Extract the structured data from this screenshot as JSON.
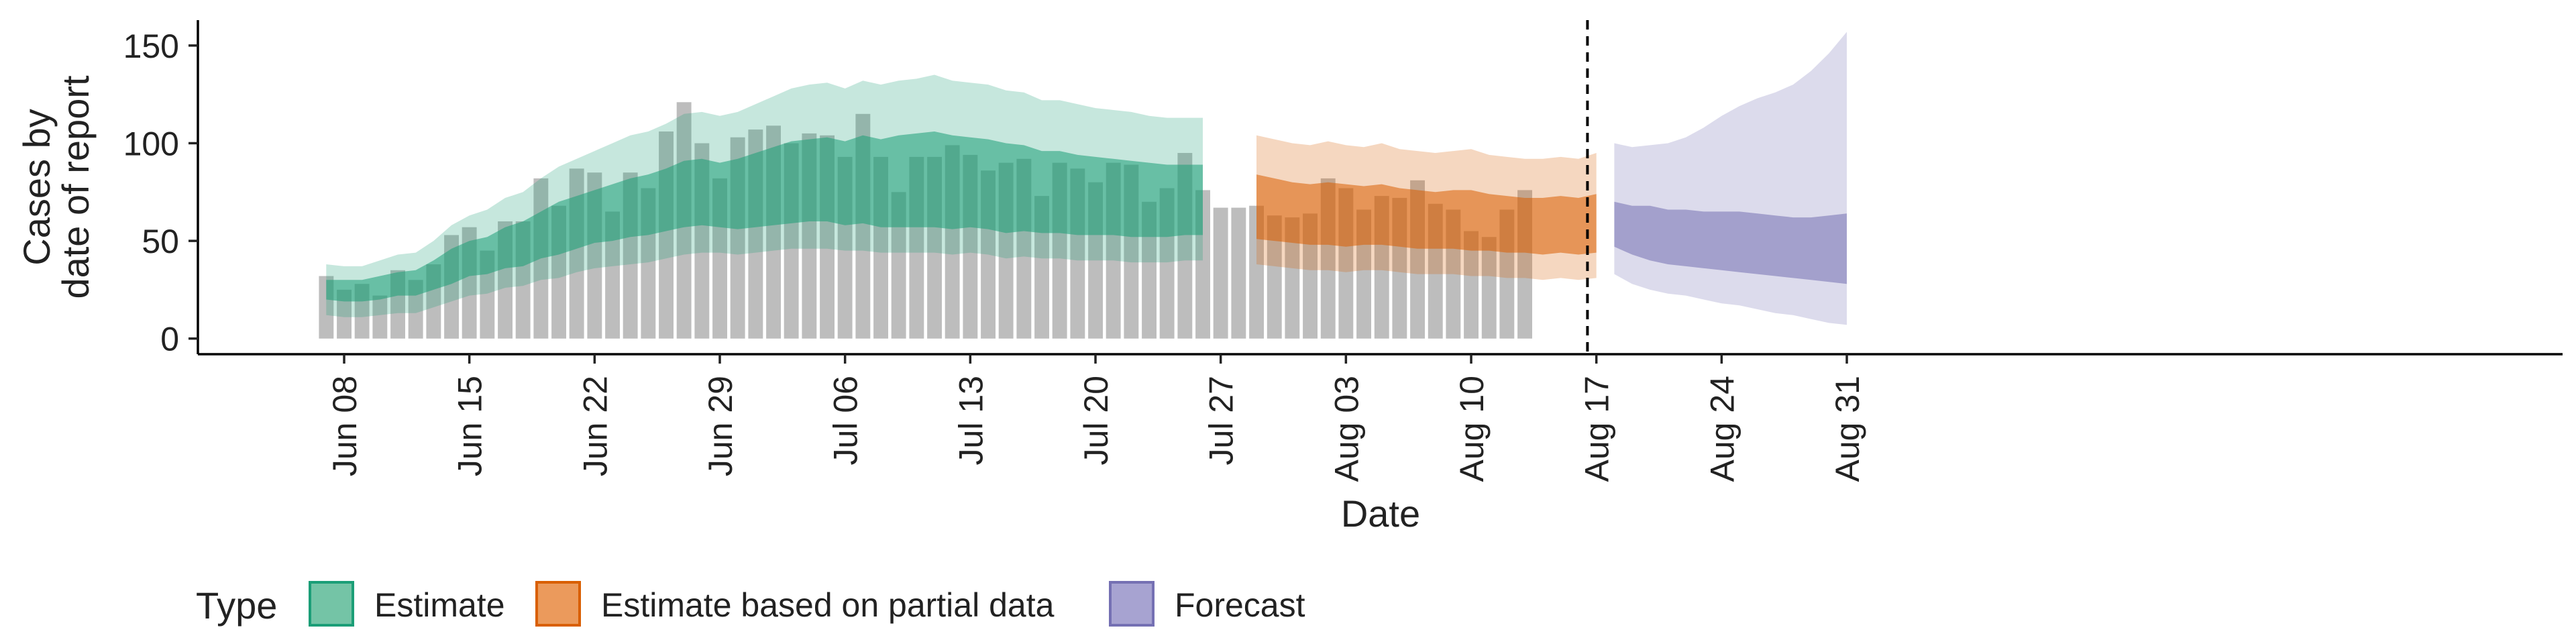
{
  "chart_data": {
    "type": "area",
    "title": "",
    "xlabel": "Date",
    "ylabel_lines": [
      "Cases by",
      "date of report"
    ],
    "x_start": "Jun 07",
    "x_range": [
      "Jun 03",
      "Sep 01"
    ],
    "ylim": [
      -8,
      163
    ],
    "yticks": [
      0,
      50,
      100,
      150
    ],
    "xticks": [
      {
        "label": "Jun 08",
        "date": "2020-06-08"
      },
      {
        "label": "Jun 15",
        "date": "2020-06-15"
      },
      {
        "label": "Jun 22",
        "date": "2020-06-22"
      },
      {
        "label": "Jun 29",
        "date": "2020-06-29"
      },
      {
        "label": "Jul 06",
        "date": "2020-07-06"
      },
      {
        "label": "Jul 13",
        "date": "2020-07-13"
      },
      {
        "label": "Jul 20",
        "date": "2020-07-20"
      },
      {
        "label": "Jul 27",
        "date": "2020-07-27"
      },
      {
        "label": "Aug 03",
        "date": "2020-08-03"
      },
      {
        "label": "Aug 10",
        "date": "2020-08-10"
      },
      {
        "label": "Aug 17",
        "date": "2020-08-17"
      },
      {
        "label": "Aug 24",
        "date": "2020-08-24"
      },
      {
        "label": "Aug 31",
        "date": "2020-08-31"
      }
    ],
    "vline_date": "2020-08-16",
    "grid": false,
    "legend_position": "bottom-left",
    "legend_title": "Type",
    "legend": [
      {
        "label": "Estimate",
        "fill": "#74c4a6",
        "stroke": "#1b9e77"
      },
      {
        "label": "Estimate based on partial data",
        "fill": "#eb9a5c",
        "stroke": "#d95f02"
      },
      {
        "label": "Forecast",
        "fill": "#a7a3d1",
        "stroke": "#7570b3"
      }
    ],
    "bar_color": "#bdbdbd",
    "reported_cases": [
      32,
      25,
      28,
      22,
      35,
      30,
      38,
      53,
      57,
      45,
      60,
      60,
      82,
      68,
      87,
      85,
      65,
      85,
      77,
      106,
      121,
      100,
      82,
      103,
      107,
      109,
      100,
      105,
      104,
      93,
      115,
      93,
      75,
      93,
      93,
      99,
      94,
      86,
      90,
      92,
      73,
      90,
      87,
      80,
      90,
      89,
      70,
      77,
      95,
      76,
      67,
      67,
      68,
      63,
      62,
      64,
      82,
      77,
      66,
      73,
      72,
      81,
      69,
      66,
      55,
      52,
      66,
      76
    ],
    "series": [
      {
        "name": "Estimate",
        "start_day": 0,
        "fill": "#1b9e77",
        "inner_lower": [
          20,
          19,
          19,
          20,
          22,
          22,
          25,
          28,
          32,
          33,
          36,
          37,
          41,
          43,
          46,
          49,
          50,
          52,
          53,
          55,
          57,
          58,
          57,
          56,
          57,
          58,
          59,
          60,
          60,
          58,
          59,
          57,
          57,
          57,
          57,
          56,
          57,
          56,
          54,
          55,
          54,
          54,
          53,
          53,
          53,
          52,
          52,
          52,
          53,
          53
        ],
        "inner_upper": [
          30,
          30,
          30,
          32,
          34,
          35,
          40,
          46,
          50,
          52,
          57,
          60,
          65,
          70,
          73,
          76,
          79,
          82,
          84,
          87,
          91,
          92,
          90,
          92,
          95,
          98,
          101,
          102,
          103,
          101,
          104,
          102,
          104,
          105,
          106,
          104,
          103,
          102,
          100,
          99,
          96,
          96,
          94,
          93,
          92,
          91,
          90,
          89,
          89,
          89
        ],
        "outer_lower": [
          12,
          11,
          11,
          12,
          13,
          13,
          16,
          19,
          22,
          23,
          26,
          27,
          30,
          31,
          34,
          36,
          37,
          38,
          39,
          41,
          43,
          44,
          44,
          43,
          44,
          45,
          46,
          46,
          46,
          45,
          45,
          44,
          44,
          44,
          44,
          43,
          44,
          43,
          41,
          42,
          41,
          41,
          40,
          40,
          40,
          39,
          39,
          39,
          40,
          40
        ],
        "outer_upper": [
          38,
          37,
          37,
          40,
          43,
          44,
          50,
          58,
          63,
          66,
          72,
          75,
          82,
          88,
          92,
          96,
          100,
          104,
          106,
          110,
          115,
          116,
          114,
          116,
          120,
          124,
          128,
          130,
          131,
          128,
          132,
          130,
          132,
          133,
          135,
          132,
          131,
          130,
          127,
          126,
          122,
          122,
          120,
          118,
          117,
          116,
          114,
          113,
          113,
          113
        ]
      },
      {
        "name": "Estimate based on partial data",
        "start_day": 52,
        "fill": "#d95f02",
        "inner_lower": [
          51,
          50,
          49,
          48,
          48,
          47,
          48,
          48,
          47,
          46,
          46,
          46,
          45,
          45,
          44,
          44,
          43,
          44,
          43,
          44
        ],
        "inner_upper": [
          84,
          82,
          80,
          79,
          80,
          79,
          78,
          79,
          77,
          76,
          75,
          76,
          76,
          74,
          73,
          72,
          72,
          73,
          72,
          74
        ],
        "outer_lower": [
          38,
          37,
          36,
          35,
          35,
          34,
          35,
          35,
          34,
          33,
          33,
          33,
          32,
          32,
          31,
          31,
          30,
          31,
          30,
          31
        ],
        "outer_upper": [
          104,
          102,
          100,
          99,
          101,
          99,
          98,
          100,
          97,
          96,
          95,
          96,
          97,
          94,
          93,
          92,
          92,
          93,
          92,
          95
        ]
      },
      {
        "name": "Forecast",
        "start_day": 72,
        "fill": "#7570b3",
        "inner_lower": [
          47,
          43,
          40,
          38,
          37,
          36,
          35,
          34,
          33,
          32,
          31,
          30,
          29,
          28
        ],
        "inner_upper": [
          70,
          68,
          68,
          66,
          66,
          65,
          65,
          65,
          64,
          63,
          62,
          62,
          63,
          64
        ],
        "outer_lower": [
          33,
          28,
          25,
          23,
          22,
          20,
          18,
          17,
          15,
          13,
          12,
          10,
          8,
          7
        ],
        "outer_upper": [
          100,
          98,
          99,
          100,
          103,
          108,
          114,
          119,
          123,
          126,
          130,
          137,
          146,
          157
        ]
      }
    ]
  }
}
